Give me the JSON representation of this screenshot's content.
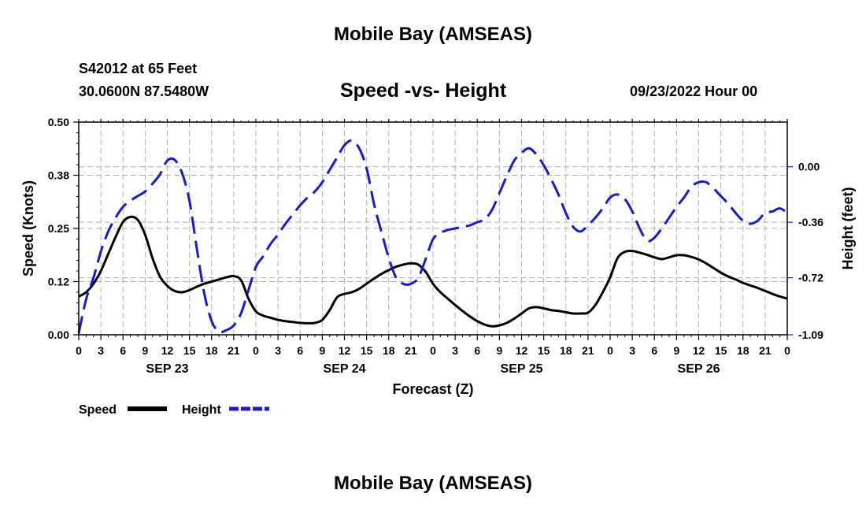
{
  "header": {
    "title": "Mobile Bay (AMSEAS)",
    "station": "S42012 at 65 Feet",
    "coords": "30.0600N  87.5480W",
    "subtitle": "Speed -vs- Height",
    "datetime": "09/23/2022 Hour 00"
  },
  "footer": {
    "title": "Mobile Bay (AMSEAS)"
  },
  "legend": {
    "speed_label": "Speed",
    "height_label": "Height"
  },
  "colors": {
    "speed": "#000000",
    "height": "#1a1acc",
    "grid": "#b0b0b0"
  },
  "chart_data": {
    "type": "line",
    "title": "Speed -vs- Height",
    "xlabel": "Forecast (Z)",
    "ylabel": "Speed (Knots)",
    "y2label": "Height (feet)",
    "xlim": [
      0,
      96
    ],
    "ylim": [
      0,
      0.5
    ],
    "y2lim": [
      -1.09,
      0.29
    ],
    "xticks": [
      0,
      3,
      6,
      9,
      12,
      15,
      18,
      21,
      24,
      27,
      30,
      33,
      36,
      39,
      42,
      45,
      48,
      51,
      54,
      57,
      60,
      63,
      66,
      69,
      72,
      75,
      78,
      81,
      84,
      87,
      90,
      93,
      96
    ],
    "xtick_labels": [
      "0",
      "3",
      "6",
      "9",
      "12",
      "15",
      "18",
      "21",
      "0",
      "3",
      "6",
      "9",
      "12",
      "15",
      "18",
      "21",
      "0",
      "3",
      "6",
      "9",
      "12",
      "15",
      "18",
      "21",
      "0",
      "3",
      "6",
      "9",
      "12",
      "15",
      "18",
      "21",
      "0"
    ],
    "day_labels": [
      {
        "label": "SEP 23",
        "x": 12
      },
      {
        "label": "SEP 24",
        "x": 36
      },
      {
        "label": "SEP 25",
        "x": 60
      },
      {
        "label": "SEP 26",
        "x": 84
      }
    ],
    "yticks": [
      0.0,
      0.125,
      0.25,
      0.375,
      0.5
    ],
    "ytick_labels": [
      "0.00",
      "0.12",
      "0.25",
      "0.38",
      "0.50"
    ],
    "y2ticks": [
      0.0,
      -0.36,
      -0.72,
      -1.09
    ],
    "y2tick_labels": [
      "0.00",
      "-0.36",
      "-0.72",
      "-1.09"
    ],
    "series": [
      {
        "name": "Speed",
        "axis": "left",
        "style": "solid",
        "x": [
          0,
          1,
          2,
          3,
          4,
          5,
          6,
          7,
          8,
          9,
          10,
          11,
          12,
          13,
          14,
          15,
          16,
          17,
          18,
          19,
          20,
          21,
          22,
          23,
          24,
          25,
          26,
          27,
          28,
          29,
          30,
          31,
          32,
          33,
          34,
          35,
          36,
          37,
          38,
          39,
          40,
          41,
          42,
          43,
          44,
          45,
          46,
          47,
          48,
          49,
          50,
          51,
          52,
          53,
          54,
          55,
          56,
          57,
          58,
          59,
          60,
          61,
          62,
          63,
          64,
          65,
          66,
          67,
          68,
          69,
          70,
          71,
          72,
          73,
          74,
          75,
          76,
          77,
          78,
          79,
          80,
          81,
          82,
          83,
          84,
          85,
          86,
          87,
          88,
          89,
          90,
          91,
          92,
          93,
          94,
          95,
          96
        ],
        "values": [
          0.09,
          0.1,
          0.12,
          0.15,
          0.19,
          0.23,
          0.265,
          0.277,
          0.27,
          0.235,
          0.18,
          0.137,
          0.115,
          0.103,
          0.1,
          0.105,
          0.113,
          0.12,
          0.125,
          0.13,
          0.135,
          0.138,
          0.128,
          0.085,
          0.055,
          0.045,
          0.04,
          0.035,
          0.032,
          0.03,
          0.028,
          0.027,
          0.028,
          0.035,
          0.058,
          0.088,
          0.096,
          0.1,
          0.108,
          0.12,
          0.132,
          0.143,
          0.152,
          0.16,
          0.165,
          0.168,
          0.165,
          0.148,
          0.12,
          0.1,
          0.085,
          0.07,
          0.056,
          0.043,
          0.032,
          0.024,
          0.02,
          0.022,
          0.028,
          0.038,
          0.05,
          0.062,
          0.065,
          0.062,
          0.058,
          0.056,
          0.053,
          0.05,
          0.05,
          0.052,
          0.07,
          0.1,
          0.135,
          0.18,
          0.195,
          0.197,
          0.193,
          0.188,
          0.182,
          0.178,
          0.182,
          0.187,
          0.187,
          0.183,
          0.177,
          0.168,
          0.157,
          0.146,
          0.137,
          0.13,
          0.122,
          0.116,
          0.11,
          0.103,
          0.096,
          0.09,
          0.085
        ]
      },
      {
        "name": "Height",
        "axis": "right",
        "style": "dashed",
        "x": [
          0,
          1,
          2,
          3,
          4,
          5,
          6,
          7,
          8,
          9,
          10,
          11,
          12,
          13,
          14,
          15,
          16,
          17,
          18,
          19,
          20,
          21,
          22,
          23,
          24,
          25,
          26,
          27,
          28,
          29,
          30,
          31,
          32,
          33,
          34,
          35,
          36,
          37,
          38,
          39,
          40,
          41,
          42,
          43,
          44,
          45,
          46,
          47,
          48,
          49,
          50,
          51,
          52,
          53,
          54,
          55,
          56,
          57,
          58,
          59,
          60,
          61,
          62,
          63,
          64,
          65,
          66,
          67,
          68,
          69,
          70,
          71,
          72,
          73,
          74,
          75,
          76,
          77,
          78,
          79,
          80,
          81,
          82,
          83,
          84,
          85,
          86,
          87,
          88,
          89,
          90,
          91,
          92,
          93,
          94,
          95,
          96
        ],
        "values": [
          -1.08,
          -0.86,
          -0.72,
          -0.55,
          -0.42,
          -0.33,
          -0.26,
          -0.22,
          -0.19,
          -0.16,
          -0.11,
          -0.05,
          0.04,
          0.045,
          -0.04,
          -0.22,
          -0.53,
          -0.82,
          -1.0,
          -1.07,
          -1.06,
          -1.03,
          -0.95,
          -0.8,
          -0.65,
          -0.58,
          -0.5,
          -0.44,
          -0.37,
          -0.31,
          -0.25,
          -0.2,
          -0.16,
          -0.1,
          -0.02,
          0.06,
          0.14,
          0.17,
          0.12,
          -0.01,
          -0.24,
          -0.42,
          -0.59,
          -0.72,
          -0.76,
          -0.76,
          -0.72,
          -0.6,
          -0.47,
          -0.43,
          -0.41,
          -0.4,
          -0.39,
          -0.38,
          -0.36,
          -0.34,
          -0.28,
          -0.17,
          -0.06,
          0.04,
          0.09,
          0.12,
          0.08,
          0.01,
          -0.08,
          -0.18,
          -0.3,
          -0.39,
          -0.42,
          -0.38,
          -0.33,
          -0.27,
          -0.2,
          -0.18,
          -0.21,
          -0.29,
          -0.4,
          -0.48,
          -0.46,
          -0.4,
          -0.33,
          -0.26,
          -0.2,
          -0.13,
          -0.1,
          -0.1,
          -0.14,
          -0.19,
          -0.24,
          -0.3,
          -0.35,
          -0.37,
          -0.35,
          -0.3,
          -0.29,
          -0.27,
          -0.3
        ]
      }
    ]
  }
}
